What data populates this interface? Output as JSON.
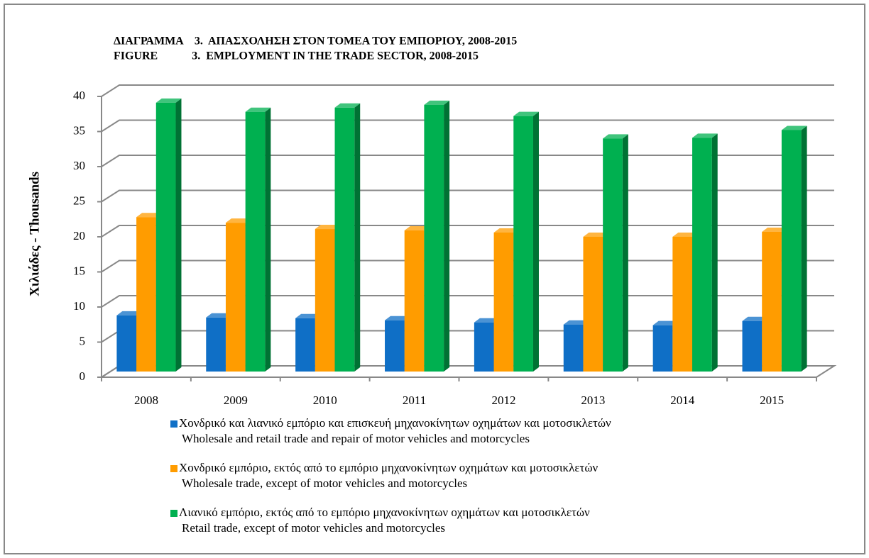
{
  "chart_data": {
    "type": "bar3d",
    "title": "ΔΙΑΓΡΑΜΜΑ    3.  ΑΠΑΣΧΟΛΗΣΗ ΣΤΟΝ ΤΟΜΕΑ ΤΟΥ ΕΜΠΟΡΙΟΥ, 2008-2015",
    "subtitle": "FIGURE            3.  EMPLOYMENT IN THE TRADE SECTOR, 2008-2015",
    "y_label": "Χιλιάδες - Thousands",
    "categories": [
      "2008",
      "2009",
      "2010",
      "2011",
      "2012",
      "2013",
      "2014",
      "2015"
    ],
    "series": [
      {
        "name": "Χονδρικό και λιανικό εμπόριο και επισκευή μηχανοκίνητων οχημάτων και μοτοσικλετών",
        "name_en": "Wholesale and retail trade and repair of motor vehicles and motorcycles",
        "color": "#0f6fc6",
        "values": [
          8.2,
          7.9,
          7.8,
          7.5,
          7.2,
          6.9,
          6.8,
          7.4
        ]
      },
      {
        "name": "Χονδρικό εμπόριο, εκτός από το εμπόριο μηχανοκίνητων οχημάτων και μοτοσικλετών",
        "name_en": "Wholesale trade, except of motor vehicles and motorcycles",
        "color": "#ff9c00",
        "values": [
          22.2,
          21.4,
          20.5,
          20.3,
          20.0,
          19.4,
          19.4,
          20.1
        ]
      },
      {
        "name": "Λιανικό εμπόριο, εκτός από το εμπόριο μηχανοκίνητων οχημάτων και μοτοσικλετών",
        "name_en": "Retail trade, except of motor vehicles and motorcycles",
        "color": "#00b050",
        "values": [
          38.5,
          37.2,
          37.8,
          38.2,
          36.6,
          33.4,
          33.5,
          34.6
        ]
      }
    ],
    "ylim": [
      0,
      40
    ],
    "yticks": [
      0,
      5,
      10,
      15,
      20,
      25,
      30,
      35,
      40
    ],
    "grid": true
  }
}
